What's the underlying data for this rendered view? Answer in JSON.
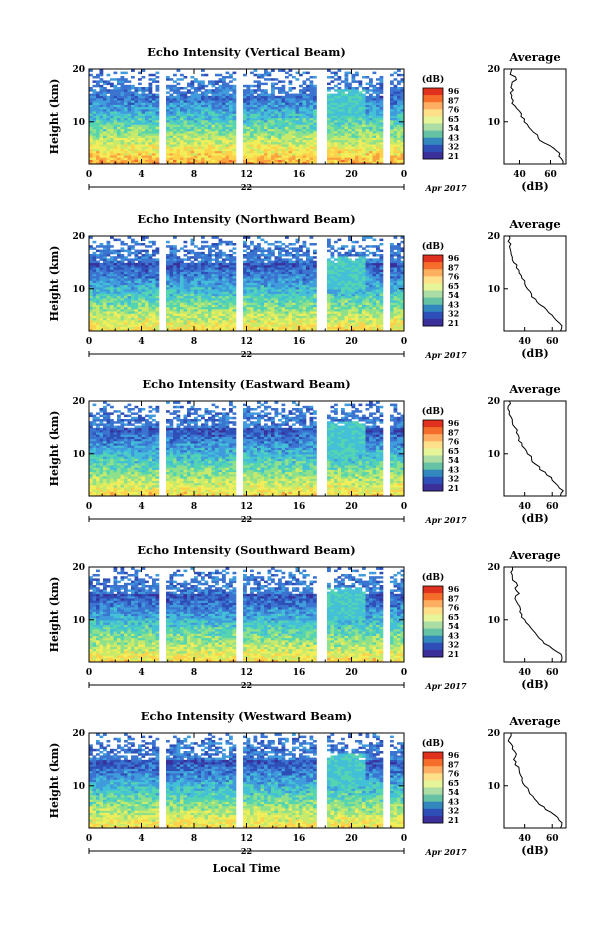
{
  "chart_data": [
    {
      "type": "heatmap",
      "title": "Echo Intensity (Vertical Beam)",
      "ylabel": "Height (km)",
      "ylim": [
        2,
        20
      ],
      "xlim": [
        0,
        24
      ],
      "x_ticks": [
        "0",
        "4",
        "8",
        "12",
        "16",
        "20",
        "0"
      ],
      "y_ticks": [
        "10",
        "20"
      ],
      "date_label": "22",
      "month_label": "Apr 2017",
      "colorbar": {
        "unit": "(dB)",
        "ticks": [
          "96",
          "87",
          "76",
          "65",
          "54",
          "43",
          "32",
          "21"
        ],
        "colors": [
          "#e0301e",
          "#f46d2b",
          "#fdae61",
          "#fee08b",
          "#e6f598",
          "#abdda4",
          "#66c2a5",
          "#3288bd",
          "#2e4fb8",
          "#3b2f9a"
        ]
      },
      "profile": {
        "title": "Average",
        "xlabel": "(dB)",
        "x_ticks": [
          "40",
          "60"
        ],
        "xlim": [
          30,
          70
        ],
        "ylim": [
          2,
          20
        ],
        "heights": [
          2,
          3,
          4,
          5,
          6,
          7,
          8,
          9,
          10,
          11,
          12,
          13,
          14,
          15,
          16,
          17,
          18,
          19,
          20
        ],
        "values": [
          68,
          67,
          66,
          62,
          56,
          52,
          49,
          46,
          43,
          41,
          40,
          37,
          36,
          35,
          36,
          35,
          38,
          34,
          35
        ]
      }
    },
    {
      "type": "heatmap",
      "title": "Echo Intensity (Northward Beam)",
      "ylabel": "Height (km)",
      "ylim": [
        2,
        20
      ],
      "xlim": [
        0,
        24
      ],
      "x_ticks": [
        "0",
        "4",
        "8",
        "12",
        "16",
        "20",
        "0"
      ],
      "y_ticks": [
        "10",
        "20"
      ],
      "date_label": "22",
      "month_label": "Apr 2017",
      "colorbar": {
        "unit": "(dB)",
        "ticks": [
          "96",
          "87",
          "76",
          "65",
          "54",
          "43",
          "32",
          "21"
        ],
        "colors": [
          "#e0301e",
          "#f46d2b",
          "#fdae61",
          "#fee08b",
          "#e6f598",
          "#abdda4",
          "#66c2a5",
          "#3288bd",
          "#2e4fb8",
          "#3b2f9a"
        ]
      },
      "profile": {
        "title": "Average",
        "xlabel": "(dB)",
        "x_ticks": [
          "40",
          "60"
        ],
        "xlim": [
          25,
          70
        ],
        "ylim": [
          2,
          20
        ],
        "heights": [
          2,
          3,
          4,
          5,
          6,
          7,
          8,
          9,
          10,
          11,
          12,
          13,
          14,
          15,
          16,
          17,
          18,
          19,
          20
        ],
        "values": [
          66,
          67,
          63,
          60,
          56,
          51,
          48,
          45,
          42,
          40,
          38,
          36,
          34,
          32,
          31,
          30,
          29,
          28,
          29
        ]
      }
    },
    {
      "type": "heatmap",
      "title": "Echo Intensity (Eastward Beam)",
      "ylabel": "Height (km)",
      "ylim": [
        2,
        20
      ],
      "xlim": [
        0,
        24
      ],
      "x_ticks": [
        "0",
        "4",
        "8",
        "12",
        "16",
        "20",
        "0"
      ],
      "y_ticks": [
        "10",
        "20"
      ],
      "date_label": "22",
      "month_label": "Apr 2017",
      "colorbar": {
        "unit": "(dB)",
        "ticks": [
          "96",
          "87",
          "76",
          "65",
          "54",
          "43",
          "32",
          "21"
        ],
        "colors": [
          "#e0301e",
          "#f46d2b",
          "#fdae61",
          "#fee08b",
          "#e6f598",
          "#abdda4",
          "#66c2a5",
          "#3288bd",
          "#2e4fb8",
          "#3b2f9a"
        ]
      },
      "profile": {
        "title": "Average",
        "xlabel": "(dB)",
        "x_ticks": [
          "40",
          "60"
        ],
        "xlim": [
          25,
          70
        ],
        "ylim": [
          2,
          20
        ],
        "heights": [
          2,
          3,
          4,
          5,
          6,
          7,
          8,
          9,
          10,
          11,
          12,
          13,
          14,
          15,
          16,
          17,
          18,
          19,
          20
        ],
        "values": [
          66,
          68,
          64,
          60,
          56,
          51,
          48,
          45,
          42,
          40,
          38,
          36,
          34,
          33,
          31,
          30,
          29,
          28,
          29
        ]
      }
    },
    {
      "type": "heatmap",
      "title": "Echo Intensity (Southward Beam)",
      "ylabel": "Height (km)",
      "ylim": [
        2,
        20
      ],
      "xlim": [
        0,
        24
      ],
      "x_ticks": [
        "0",
        "4",
        "8",
        "12",
        "16",
        "20",
        "0"
      ],
      "y_ticks": [
        "10",
        "20"
      ],
      "date_label": "22",
      "month_label": "Apr 2017",
      "colorbar": {
        "unit": "(dB)",
        "ticks": [
          "96",
          "87",
          "76",
          "65",
          "54",
          "43",
          "32",
          "21"
        ],
        "colors": [
          "#e0301e",
          "#f46d2b",
          "#fdae61",
          "#fee08b",
          "#e6f598",
          "#abdda4",
          "#66c2a5",
          "#3288bd",
          "#2e4fb8",
          "#3b2f9a"
        ]
      },
      "profile": {
        "title": "Average",
        "xlabel": "(dB)",
        "x_ticks": [
          "40",
          "60"
        ],
        "xlim": [
          25,
          70
        ],
        "ylim": [
          2,
          20
        ],
        "heights": [
          2,
          3,
          4,
          5,
          6,
          7,
          8,
          9,
          10,
          11,
          12,
          13,
          14,
          15,
          16,
          17,
          18,
          19,
          20
        ],
        "values": [
          66,
          67,
          63,
          58,
          53,
          49,
          46,
          43,
          40,
          38,
          37,
          35,
          33,
          36,
          33,
          34,
          31,
          30,
          31
        ]
      }
    },
    {
      "type": "heatmap",
      "title": "Echo Intensity (Westward Beam)",
      "ylabel": "Height (km)",
      "xlabel": "Local Time",
      "ylim": [
        2,
        20
      ],
      "xlim": [
        0,
        24
      ],
      "x_ticks": [
        "0",
        "4",
        "8",
        "12",
        "16",
        "20",
        "0"
      ],
      "y_ticks": [
        "10",
        "20"
      ],
      "date_label": "22",
      "month_label": "Apr 2017",
      "colorbar": {
        "unit": "(dB)",
        "ticks": [
          "96",
          "87",
          "76",
          "65",
          "54",
          "43",
          "32",
          "21"
        ],
        "colors": [
          "#e0301e",
          "#f46d2b",
          "#fdae61",
          "#fee08b",
          "#e6f598",
          "#abdda4",
          "#66c2a5",
          "#3288bd",
          "#2e4fb8",
          "#3b2f9a"
        ]
      },
      "profile": {
        "title": "Average",
        "xlabel": "(dB)",
        "x_ticks": [
          "40",
          "60"
        ],
        "xlim": [
          25,
          70
        ],
        "ylim": [
          2,
          20
        ],
        "heights": [
          2,
          3,
          4,
          5,
          6,
          7,
          8,
          9,
          10,
          11,
          12,
          13,
          14,
          15,
          16,
          17,
          18,
          19,
          20
        ],
        "values": [
          66,
          67,
          64,
          59,
          54,
          49,
          46,
          43,
          40,
          38,
          37,
          36,
          33,
          32,
          34,
          31,
          30,
          29,
          30
        ]
      }
    }
  ],
  "data_gaps_hours": [
    5.4,
    11.4,
    17.6,
    22.6
  ]
}
